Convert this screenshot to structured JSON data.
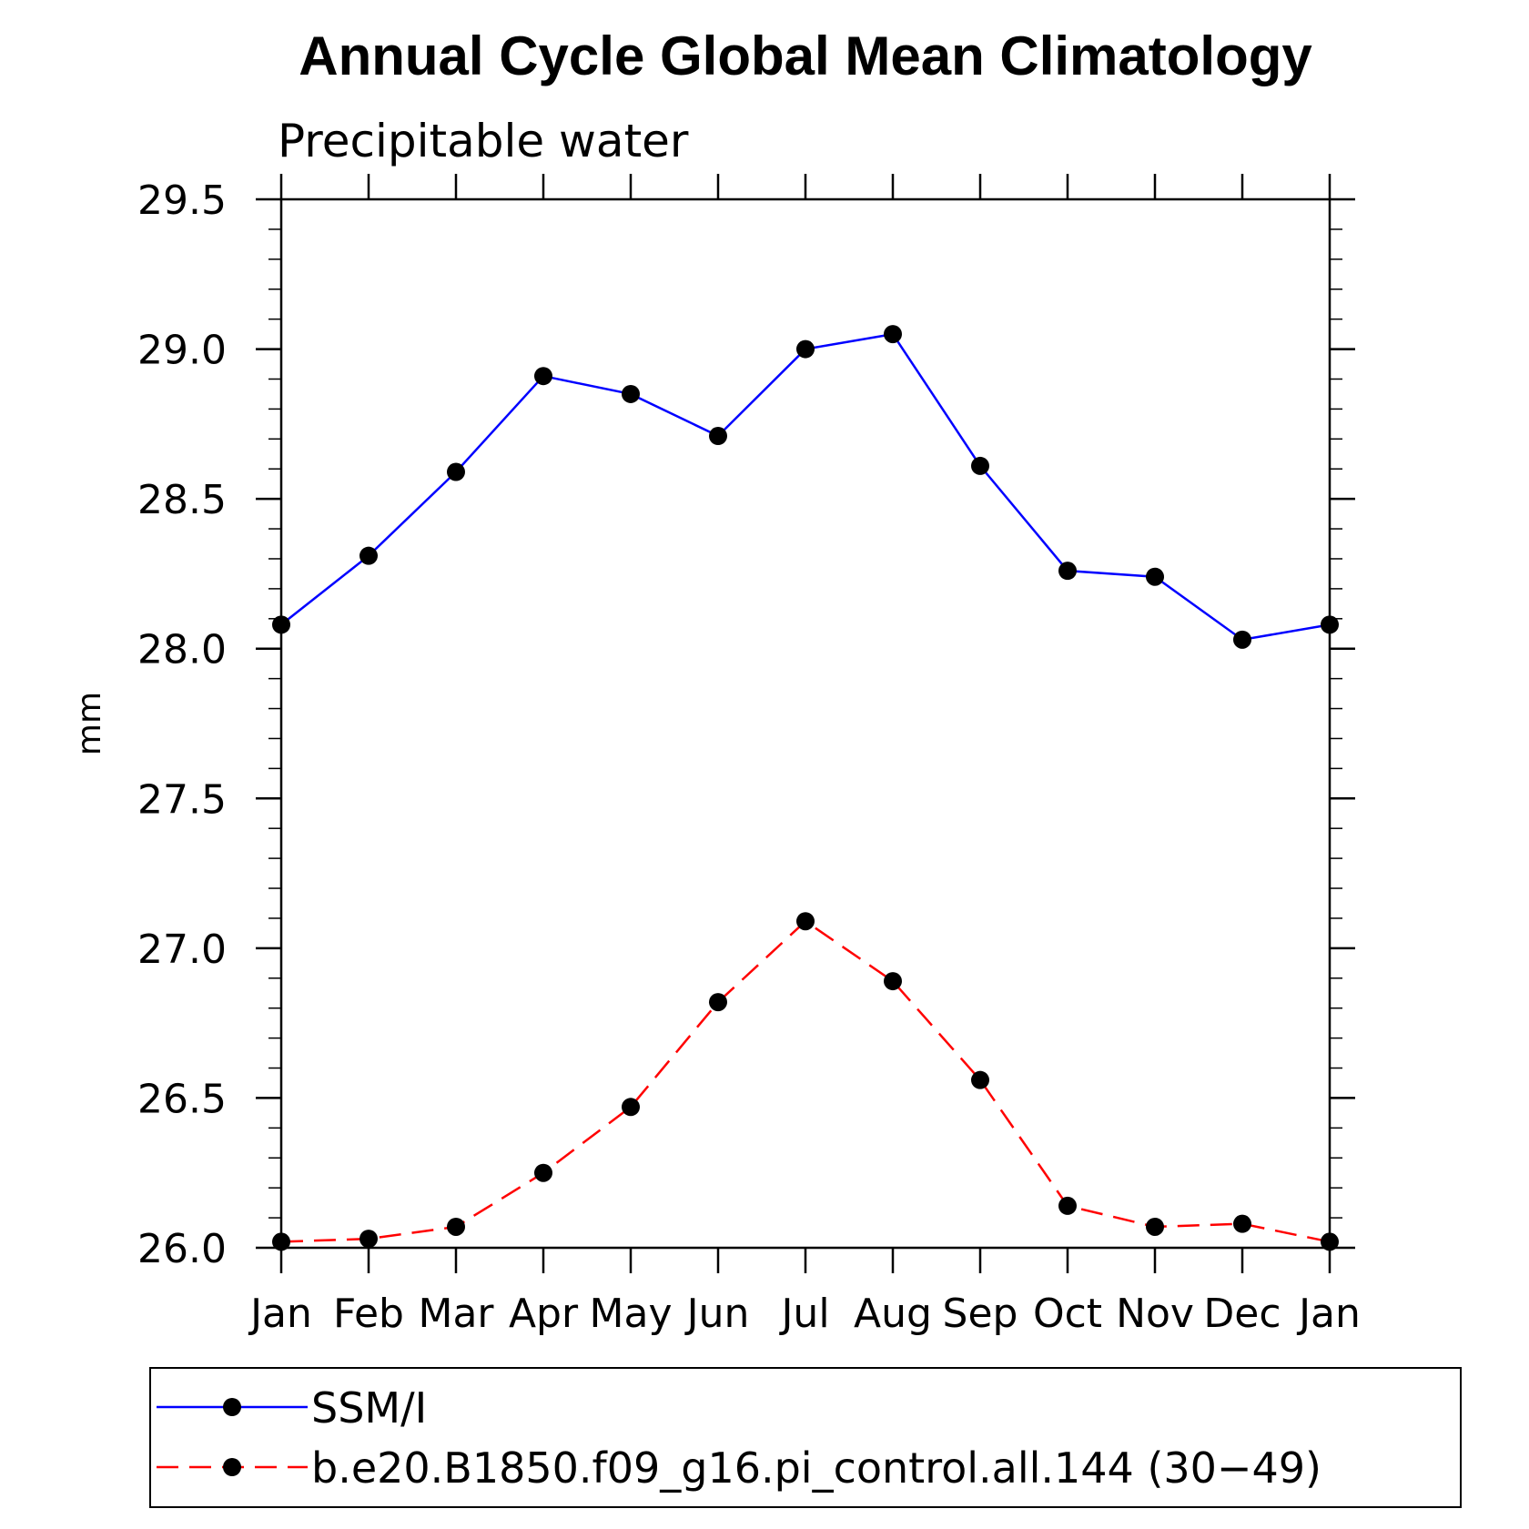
{
  "chart_data": {
    "type": "line",
    "title": "Annual Cycle Global Mean Climatology",
    "subtitle": "Precipitable water",
    "xlabel": "",
    "ylabel": "mm",
    "categories": [
      "Jan",
      "Feb",
      "Mar",
      "Apr",
      "May",
      "Jun",
      "Jul",
      "Aug",
      "Sep",
      "Oct",
      "Nov",
      "Dec",
      "Jan"
    ],
    "ylim": [
      26.0,
      29.5
    ],
    "yticks": [
      26.0,
      26.5,
      27.0,
      27.5,
      28.0,
      28.5,
      29.0,
      29.5
    ],
    "ytick_labels": [
      "26.0",
      "26.5",
      "27.0",
      "27.5",
      "28.0",
      "28.5",
      "29.0",
      "29.5"
    ],
    "legend_position": "bottom",
    "series": [
      {
        "name": "SSM/I",
        "color": "#0000ff",
        "dash": "solid",
        "values": [
          28.08,
          28.31,
          28.59,
          28.91,
          28.85,
          28.71,
          29.0,
          29.05,
          28.61,
          28.26,
          28.24,
          28.03,
          28.08
        ]
      },
      {
        "name": "b.e20.B1850.f09_g16.pi_control.all.144 (30−49)",
        "color": "#ff0000",
        "dash": "dashed",
        "values": [
          26.02,
          26.03,
          26.07,
          26.25,
          26.47,
          26.82,
          27.09,
          26.89,
          26.56,
          26.14,
          26.07,
          26.08,
          26.02
        ]
      }
    ]
  }
}
